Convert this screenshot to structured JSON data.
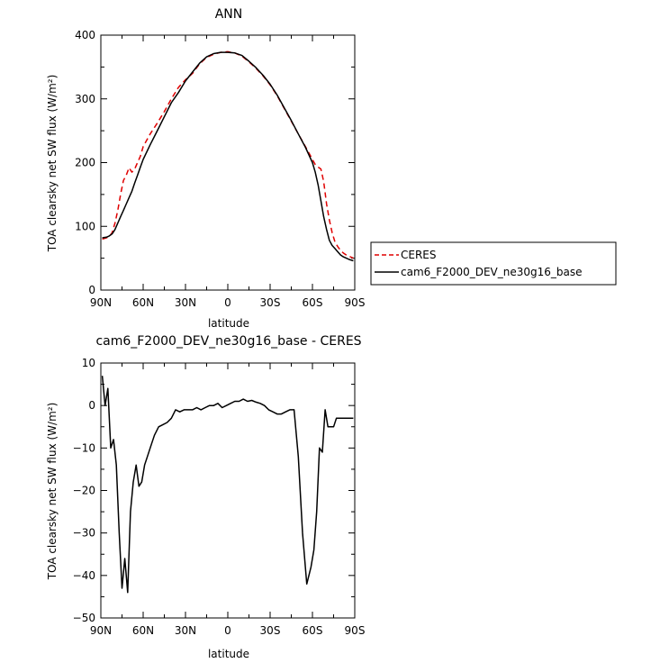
{
  "chart_data": [
    {
      "type": "line",
      "title": "ANN",
      "xlabel": "latitude",
      "ylabel": "TOA clearsky net SW flux (W/m²)",
      "xlim": [
        90,
        -90
      ],
      "ylim": [
        0,
        400
      ],
      "xticks": [
        90,
        60,
        30,
        0,
        -30,
        -60,
        -90
      ],
      "xtick_labels": [
        "90N",
        "60N",
        "30N",
        "0",
        "30S",
        "60S",
        "90S"
      ],
      "yticks": [
        0,
        100,
        200,
        300,
        400
      ],
      "ytick_labels": [
        "0",
        "100",
        "200",
        "300",
        "400"
      ],
      "legend_position": "right",
      "series": [
        {
          "name": "CERES",
          "color": "#e00000",
          "dash": "dashed",
          "x": [
            89,
            86,
            84,
            82,
            80,
            78,
            76,
            74,
            72,
            70,
            68,
            66,
            64,
            62,
            60,
            55,
            50,
            45,
            40,
            35,
            30,
            25,
            20,
            15,
            10,
            5,
            0,
            -5,
            -10,
            -15,
            -20,
            -25,
            -30,
            -35,
            -40,
            -45,
            -50,
            -55,
            -60,
            -62,
            -64,
            -66,
            -68,
            -70,
            -72,
            -74,
            -76,
            -78,
            -80,
            -82,
            -84,
            -86,
            -89
          ],
          "y": [
            80,
            82,
            84,
            90,
            105,
            125,
            150,
            172,
            180,
            192,
            185,
            190,
            200,
            210,
            225,
            245,
            262,
            280,
            300,
            318,
            330,
            340,
            355,
            365,
            370,
            373,
            374,
            372,
            367,
            358,
            348,
            336,
            322,
            305,
            285,
            265,
            245,
            225,
            205,
            197,
            193,
            190,
            170,
            135,
            110,
            90,
            75,
            68,
            62,
            58,
            55,
            53,
            50
          ]
        },
        {
          "name": "cam6_F2000_DEV_ne30g16_base",
          "color": "#000000",
          "dash": "solid",
          "x": [
            89,
            86,
            84,
            82,
            80,
            78,
            76,
            74,
            72,
            70,
            68,
            66,
            64,
            62,
            60,
            55,
            50,
            45,
            40,
            35,
            30,
            25,
            20,
            15,
            10,
            5,
            0,
            -5,
            -10,
            -15,
            -20,
            -25,
            -30,
            -35,
            -40,
            -45,
            -50,
            -55,
            -60,
            -62,
            -64,
            -66,
            -68,
            -70,
            -72,
            -74,
            -76,
            -78,
            -80,
            -82,
            -84,
            -86,
            -89
          ],
          "y": [
            82,
            83,
            85,
            88,
            95,
            105,
            115,
            125,
            135,
            145,
            155,
            168,
            180,
            193,
            205,
            228,
            250,
            272,
            294,
            310,
            328,
            342,
            356,
            366,
            371,
            373,
            373,
            372,
            368,
            359,
            349,
            337,
            323,
            306,
            286,
            266,
            245,
            224,
            200,
            185,
            165,
            140,
            115,
            95,
            78,
            70,
            65,
            60,
            55,
            52,
            50,
            48,
            46
          ]
        }
      ]
    },
    {
      "type": "line",
      "title": "cam6_F2000_DEV_ne30g16_base - CERES",
      "xlabel": "latitude",
      "ylabel": "TOA clearsky net SW flux (W/m²)",
      "xlim": [
        90,
        -90
      ],
      "ylim": [
        -50,
        10
      ],
      "xticks": [
        90,
        60,
        30,
        0,
        -30,
        -60,
        -90
      ],
      "xtick_labels": [
        "90N",
        "60N",
        "30N",
        "0",
        "30S",
        "60S",
        "90S"
      ],
      "yticks": [
        10,
        0,
        -10,
        -20,
        -30,
        -40,
        -50
      ],
      "ytick_labels": [
        "10",
        "0",
        "−10",
        "−20",
        "−30",
        "−40",
        "−50"
      ],
      "series": [
        {
          "color": "#000000",
          "dash": "solid",
          "x": [
            89,
            87,
            85,
            83,
            81,
            79,
            77,
            75,
            73,
            71,
            69,
            67,
            65,
            63,
            61,
            59,
            57,
            55,
            52,
            49,
            46,
            43,
            40,
            37,
            34,
            31,
            28,
            25,
            22,
            19,
            16,
            13,
            10,
            7,
            4,
            1,
            -2,
            -5,
            -8,
            -11,
            -14,
            -17,
            -20,
            -23,
            -26,
            -29,
            -32,
            -35,
            -38,
            -41,
            -44,
            -47,
            -50,
            -53,
            -56,
            -59,
            -61,
            -63,
            -65,
            -67,
            -69,
            -71,
            -73,
            -75,
            -77,
            -79,
            -81,
            -83,
            -85,
            -87,
            -89
          ],
          "y": [
            7,
            0,
            4,
            -10,
            -8,
            -14,
            -30,
            -43,
            -36,
            -44,
            -25,
            -18,
            -14,
            -19,
            -18,
            -14,
            -12,
            -10,
            -7,
            -5,
            -4.5,
            -4,
            -3,
            -1,
            -1.5,
            -1,
            -1,
            -1,
            -0.5,
            -1,
            -0.5,
            0,
            0,
            0.5,
            -0.5,
            0,
            0.5,
            1,
            1,
            1.5,
            1,
            1.2,
            0.8,
            0.5,
            0,
            -1,
            -1.5,
            -2,
            -2,
            -1.5,
            -1,
            -1,
            -12,
            -30,
            -42,
            -38,
            -34,
            -25,
            -10,
            -11,
            -1,
            -5,
            -5,
            -5,
            -3,
            -3,
            -3,
            -3,
            -3,
            -3,
            -3
          ]
        }
      ]
    }
  ]
}
